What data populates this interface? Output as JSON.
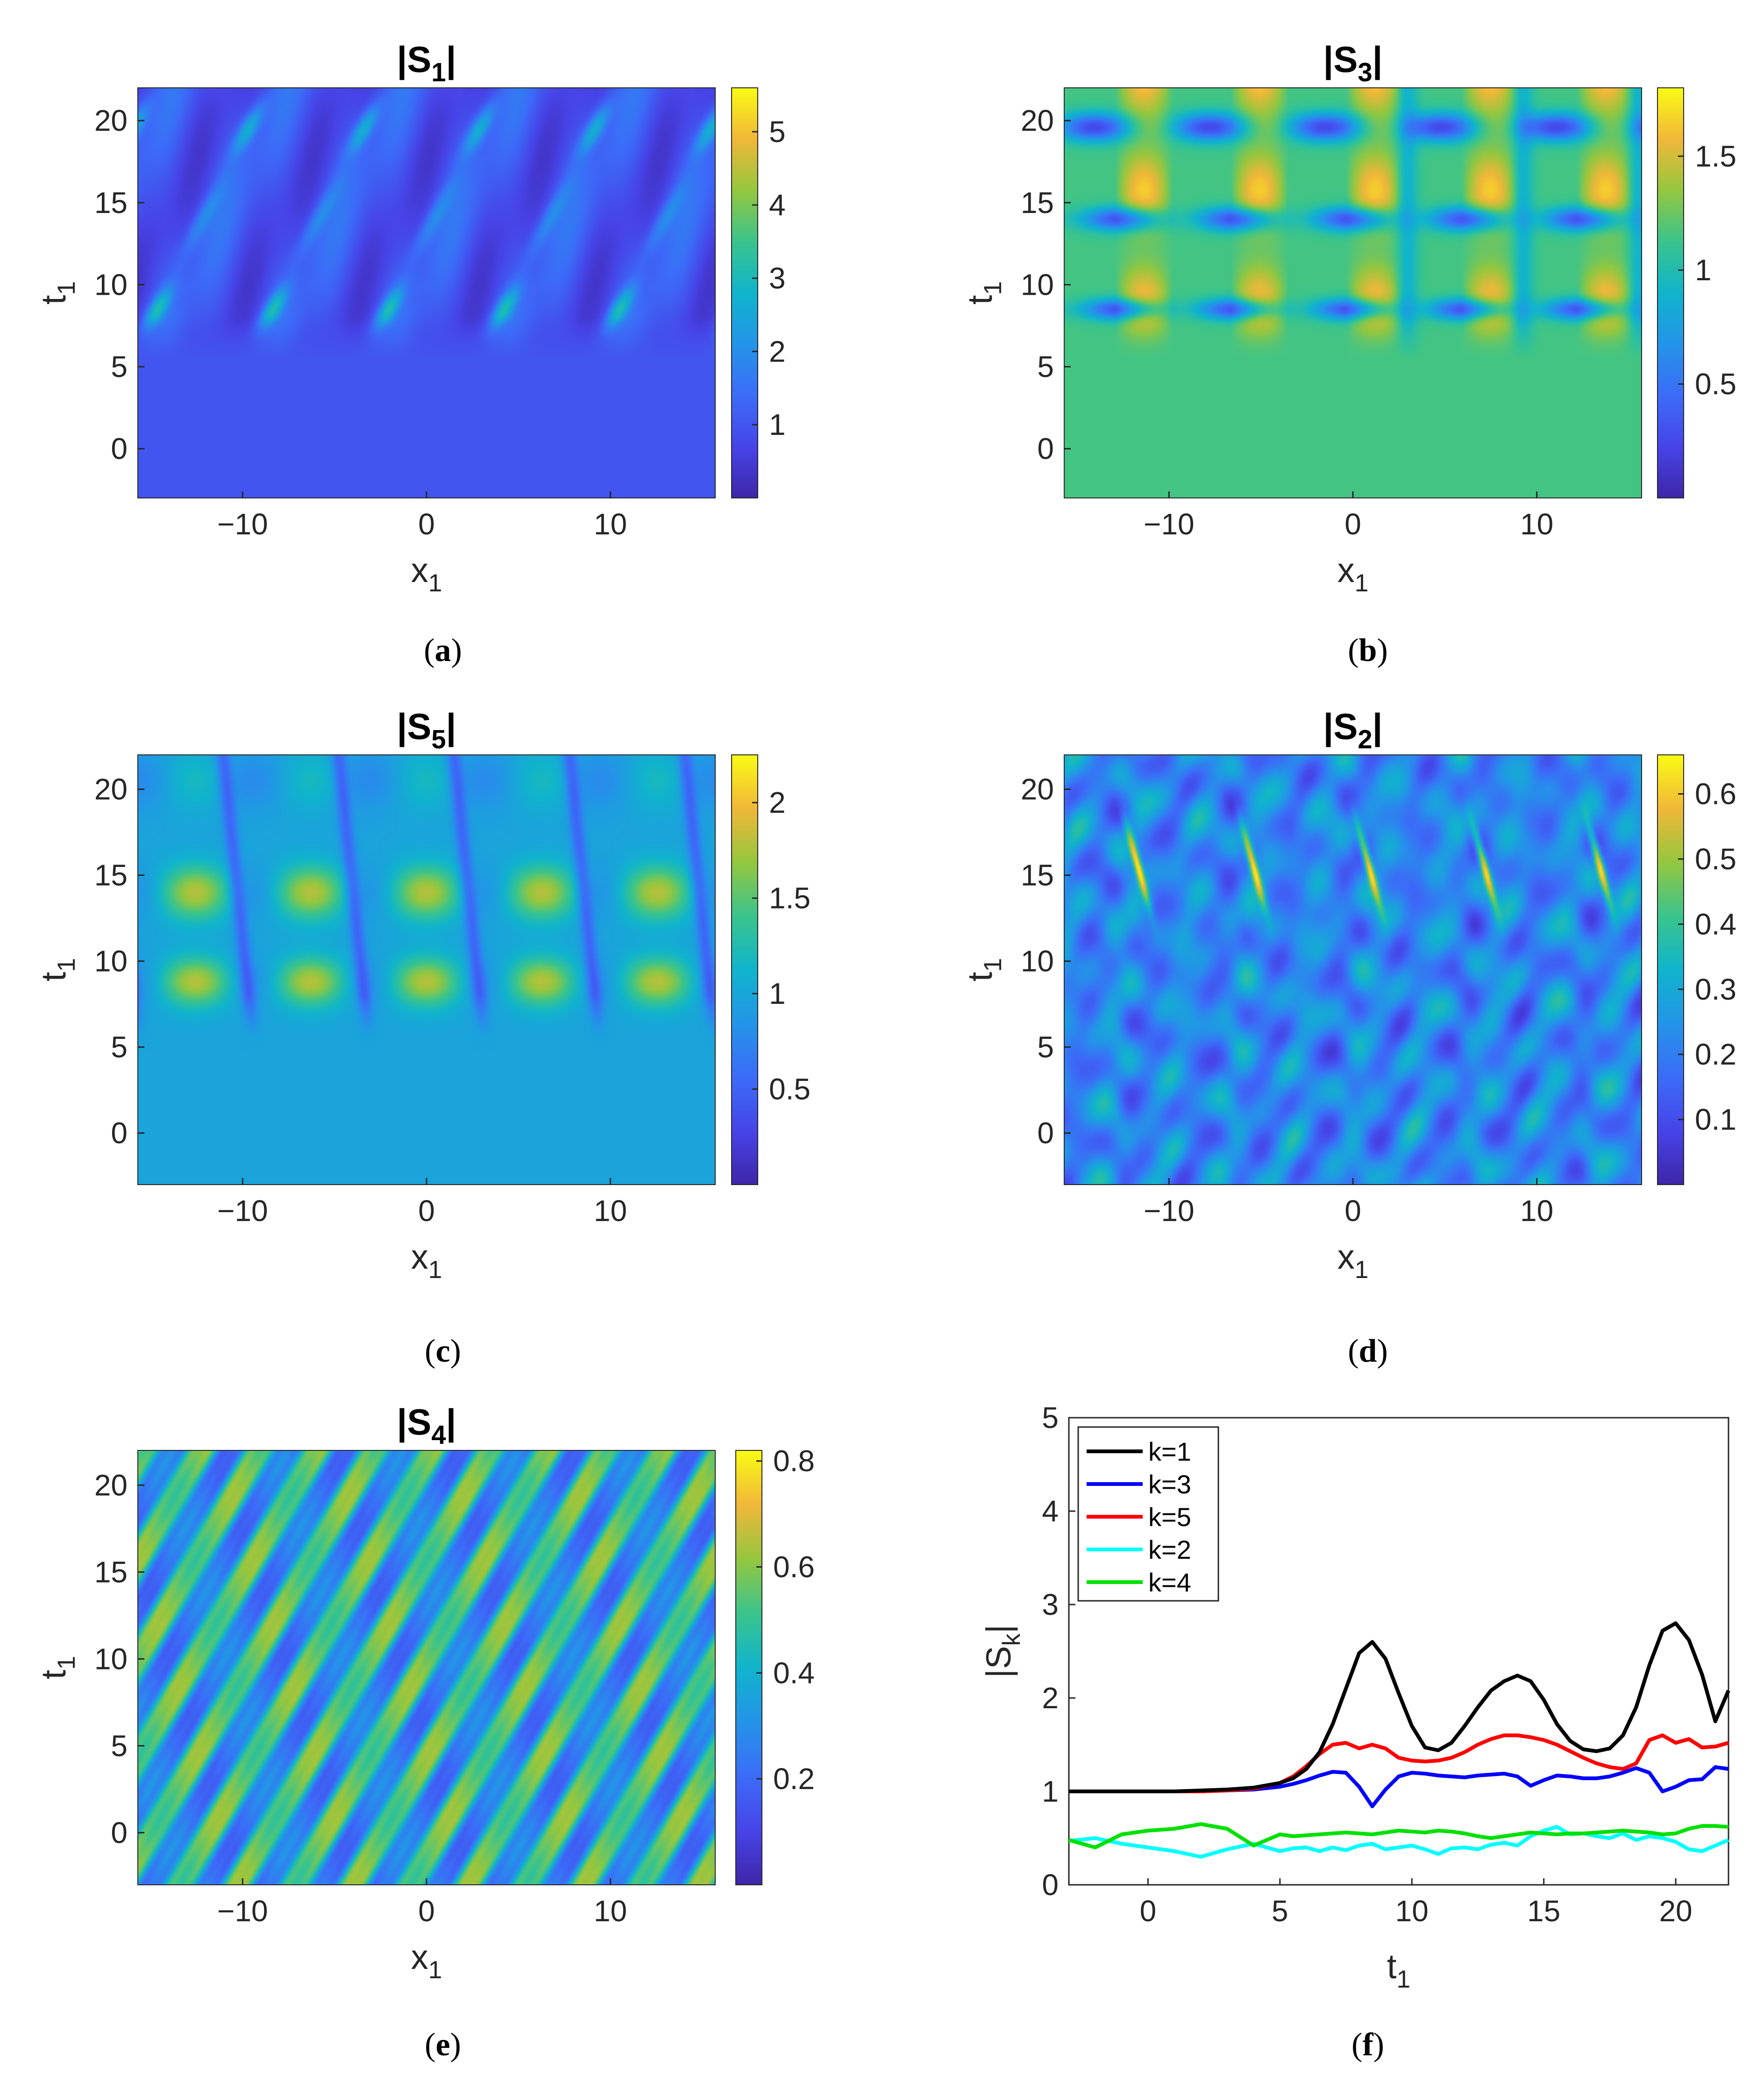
{
  "chart_data": [
    {
      "type": "heatmap",
      "panel": "a",
      "title_base": "|S",
      "title_sub": "1",
      "title_end": "|",
      "caption": "a",
      "xlabel": "x",
      "xlabel_sub": "1",
      "ylabel": "t",
      "ylabel_sub": "1",
      "xlim": [
        -15.7,
        15.7
      ],
      "ylim": [
        -3,
        22
      ],
      "xticks": [
        -10,
        0,
        10
      ],
      "yticks": [
        0,
        5,
        10,
        15,
        20
      ],
      "clim": [
        0,
        5.6
      ],
      "cticks": [
        1,
        2,
        3,
        4,
        5
      ],
      "base_value": 1.0,
      "pattern": "oblique"
    },
    {
      "type": "heatmap",
      "panel": "b",
      "title_base": "|S",
      "title_sub": "3",
      "title_end": "|",
      "caption": "b",
      "xlabel": "x",
      "xlabel_sub": "1",
      "ylabel": "t",
      "ylabel_sub": "1",
      "xlim": [
        -15.7,
        15.7
      ],
      "ylim": [
        -3,
        22
      ],
      "xticks": [
        -10,
        0,
        10
      ],
      "yticks": [
        0,
        5,
        10,
        15,
        20
      ],
      "clim": [
        0,
        1.8
      ],
      "cticks": [
        0.5,
        1,
        1.5
      ],
      "base_value": 1.0,
      "pattern": "banded"
    },
    {
      "type": "heatmap",
      "panel": "c",
      "title_base": "|S",
      "title_sub": "5",
      "title_end": "|",
      "caption": "c",
      "xlabel": "x",
      "xlabel_sub": "1",
      "ylabel": "t",
      "ylabel_sub": "1",
      "xlim": [
        -15.7,
        15.7
      ],
      "ylim": [
        -3,
        22
      ],
      "xticks": [
        -10,
        0,
        10
      ],
      "yticks": [
        0,
        5,
        10,
        15,
        20
      ],
      "clim": [
        0,
        2.25
      ],
      "cticks": [
        0.5,
        1,
        1.5,
        2
      ],
      "base_value": 1.0,
      "pattern": "bright-bands"
    },
    {
      "type": "heatmap",
      "panel": "d",
      "title_base": "|S",
      "title_sub": "2",
      "title_end": "|",
      "caption": "d",
      "xlabel": "x",
      "xlabel_sub": "1",
      "ylabel": "t",
      "ylabel_sub": "1",
      "xlim": [
        -15.7,
        15.7
      ],
      "ylim": [
        -3,
        22
      ],
      "xticks": [
        -10,
        0,
        10
      ],
      "yticks": [
        0,
        5,
        10,
        15,
        20
      ],
      "clim": [
        0,
        0.66
      ],
      "cticks": [
        0.1,
        0.2,
        0.3,
        0.4,
        0.5,
        0.6
      ],
      "base_value": 0.22,
      "pattern": "chaotic"
    },
    {
      "type": "heatmap",
      "panel": "e",
      "title_base": "|S",
      "title_sub": "4",
      "title_end": "|",
      "caption": "e",
      "xlabel": "x",
      "xlabel_sub": "1",
      "ylabel": "t",
      "ylabel_sub": "1",
      "xlim": [
        -15.7,
        15.7
      ],
      "ylim": [
        -3,
        22
      ],
      "xticks": [
        -10,
        0,
        10
      ],
      "yticks": [
        0,
        5,
        10,
        15,
        20
      ],
      "clim": [
        0,
        0.82
      ],
      "cticks": [
        0.2,
        0.4,
        0.6,
        0.8
      ],
      "base_value": 0.4,
      "pattern": "diagonal"
    },
    {
      "type": "line",
      "panel": "f",
      "caption": "f",
      "xlabel": "t",
      "xlabel_sub": "1",
      "ylabel_base": "|S",
      "ylabel_sub": "k",
      "ylabel_end": "|",
      "xlim": [
        -3,
        22
      ],
      "ylim": [
        0,
        5
      ],
      "xticks": [
        0,
        5,
        10,
        15,
        20
      ],
      "yticks": [
        0,
        1,
        2,
        3,
        4,
        5
      ],
      "legend_position": "top-left",
      "x": [
        -3,
        -2,
        -1,
        0,
        1,
        2,
        3,
        4,
        5,
        5.5,
        6,
        6.5,
        7,
        7.5,
        8,
        8.5,
        9,
        9.5,
        10,
        10.5,
        11,
        11.5,
        12,
        12.5,
        13,
        13.5,
        14,
        14.5,
        15,
        15.5,
        16,
        16.5,
        17,
        17.5,
        18,
        18.5,
        19,
        19.5,
        20,
        20.5,
        21,
        21.5,
        22
      ],
      "series": [
        {
          "name": "k=1",
          "color": "#000000",
          "values": [
            1.0,
            1.0,
            1.0,
            1.0,
            1.0,
            1.01,
            1.02,
            1.04,
            1.09,
            1.14,
            1.24,
            1.42,
            1.72,
            2.1,
            2.48,
            2.6,
            2.42,
            2.05,
            1.7,
            1.47,
            1.44,
            1.52,
            1.7,
            1.9,
            2.08,
            2.18,
            2.24,
            2.18,
            1.98,
            1.72,
            1.54,
            1.45,
            1.43,
            1.46,
            1.6,
            1.9,
            2.35,
            2.72,
            2.8,
            2.62,
            2.25,
            1.75,
            2.08
          ]
        },
        {
          "name": "k=3",
          "color": "#0000ff",
          "values": [
            1.0,
            1.0,
            1.0,
            1.0,
            1.0,
            1.0,
            1.01,
            1.02,
            1.05,
            1.08,
            1.12,
            1.17,
            1.21,
            1.2,
            1.05,
            0.84,
            1.02,
            1.16,
            1.2,
            1.19,
            1.17,
            1.16,
            1.15,
            1.17,
            1.18,
            1.19,
            1.16,
            1.06,
            1.12,
            1.17,
            1.16,
            1.14,
            1.14,
            1.16,
            1.2,
            1.25,
            1.2,
            1.0,
            1.05,
            1.12,
            1.13,
            1.26,
            1.24
          ]
        },
        {
          "name": "k=5",
          "color": "#ff0000",
          "values": [
            1.0,
            1.0,
            1.0,
            1.0,
            1.0,
            1.0,
            1.01,
            1.03,
            1.09,
            1.16,
            1.27,
            1.4,
            1.5,
            1.52,
            1.46,
            1.5,
            1.46,
            1.36,
            1.33,
            1.32,
            1.33,
            1.36,
            1.42,
            1.5,
            1.56,
            1.6,
            1.6,
            1.58,
            1.55,
            1.5,
            1.43,
            1.36,
            1.3,
            1.26,
            1.24,
            1.3,
            1.55,
            1.6,
            1.52,
            1.56,
            1.47,
            1.48,
            1.52
          ]
        },
        {
          "name": "k=2",
          "color": "#00ffff",
          "values": [
            0.47,
            0.5,
            0.44,
            0.4,
            0.36,
            0.3,
            0.38,
            0.44,
            0.36,
            0.39,
            0.4,
            0.36,
            0.4,
            0.37,
            0.42,
            0.44,
            0.38,
            0.4,
            0.42,
            0.38,
            0.33,
            0.39,
            0.4,
            0.38,
            0.43,
            0.45,
            0.42,
            0.52,
            0.58,
            0.62,
            0.54,
            0.55,
            0.52,
            0.5,
            0.55,
            0.48,
            0.52,
            0.5,
            0.46,
            0.38,
            0.36,
            0.42,
            0.48
          ]
        },
        {
          "name": "k=4",
          "color": "#00e000",
          "values": [
            0.48,
            0.4,
            0.54,
            0.58,
            0.6,
            0.65,
            0.6,
            0.42,
            0.54,
            0.52,
            0.53,
            0.54,
            0.55,
            0.56,
            0.55,
            0.54,
            0.56,
            0.58,
            0.57,
            0.56,
            0.58,
            0.57,
            0.55,
            0.52,
            0.5,
            0.52,
            0.54,
            0.56,
            0.55,
            0.54,
            0.55,
            0.55,
            0.56,
            0.57,
            0.58,
            0.57,
            0.56,
            0.54,
            0.55,
            0.6,
            0.63,
            0.63,
            0.62
          ]
        }
      ]
    }
  ]
}
